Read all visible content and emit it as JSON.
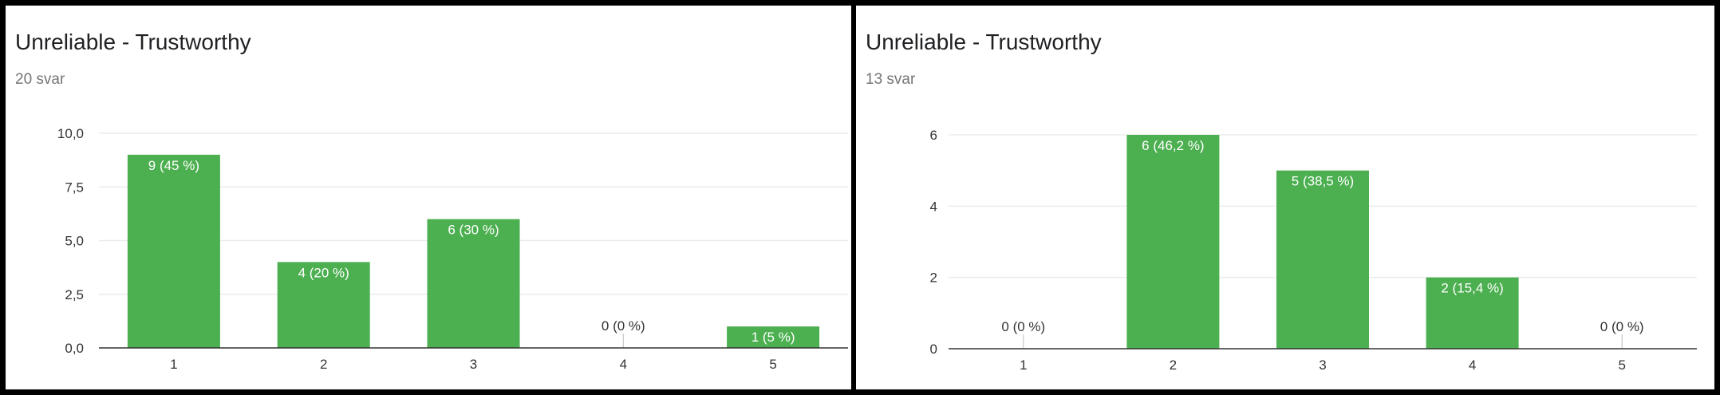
{
  "colors": {
    "bar": "#4caf50",
    "grid": "#ebebeb",
    "axis": "#333333",
    "label_inside": "#ffffff",
    "label_outside": "#333333"
  },
  "panels": [
    {
      "title": "Unreliable - Trustworthy",
      "subtitle": "20 svar"
    },
    {
      "title": "Unreliable - Trustworthy",
      "subtitle": "13 svar"
    }
  ],
  "chart_data": [
    {
      "type": "bar",
      "title": "Unreliable - Trustworthy",
      "subtitle": "20 svar",
      "categories": [
        "1",
        "2",
        "3",
        "4",
        "5"
      ],
      "values": [
        9,
        4,
        6,
        0,
        1
      ],
      "data_labels": [
        "9 (45 %)",
        "4 (20 %)",
        "6 (30 %)",
        "0 (0 %)",
        "1 (5 %)"
      ],
      "y_ticks": [
        0,
        2.5,
        5,
        7.5,
        10
      ],
      "y_tick_labels": [
        "0,0",
        "2,5",
        "5,0",
        "7,5",
        "10,0"
      ],
      "ylim": [
        0,
        10
      ],
      "xlabel": "",
      "ylabel": "",
      "grid": true
    },
    {
      "type": "bar",
      "title": "Unreliable - Trustworthy",
      "subtitle": "13 svar",
      "categories": [
        "1",
        "2",
        "3",
        "4",
        "5"
      ],
      "values": [
        0,
        6,
        5,
        2,
        0
      ],
      "data_labels": [
        "0 (0 %)",
        "6 (46,2 %)",
        "5 (38,5 %)",
        "2 (15,4 %)",
        "0 (0 %)"
      ],
      "y_ticks": [
        0,
        2,
        4,
        6
      ],
      "y_tick_labels": [
        "0",
        "2",
        "4",
        "6"
      ],
      "ylim": [
        0,
        6
      ],
      "xlabel": "",
      "ylabel": "",
      "grid": true
    }
  ]
}
